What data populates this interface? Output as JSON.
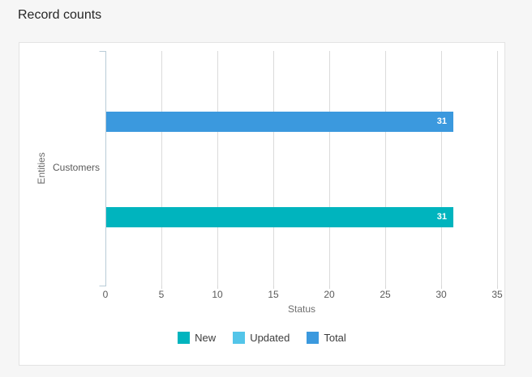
{
  "page": {
    "title": "Record counts"
  },
  "colors": {
    "page_bg": "#F6F6F6",
    "panel_bg": "#FFFFFF",
    "panel_border": "#E3E3E3",
    "axis_line": "#B9CCD7",
    "gridline": "#DBDBDB",
    "bar_value_text": "#FFFFFF",
    "series_new": "#00B4BE",
    "series_updated": "#53C5E9",
    "series_total": "#3B99DE"
  },
  "chart_data": {
    "type": "bar",
    "orientation": "horizontal",
    "title": "Record counts",
    "categories": [
      "Customers"
    ],
    "series": [
      {
        "name": "New",
        "values": [
          31
        ],
        "color": "#00B4BE"
      },
      {
        "name": "Updated",
        "values": [
          0
        ],
        "color": "#53C5E9"
      },
      {
        "name": "Total",
        "values": [
          31
        ],
        "color": "#3B99DE"
      }
    ],
    "xlabel": "Status",
    "ylabel": "Entities",
    "xlim": [
      0,
      35
    ],
    "xticks": [
      0,
      5,
      10,
      15,
      20,
      25,
      30,
      35
    ],
    "grid": "vertical",
    "legend_position": "bottom",
    "bar_value_labels": [
      31,
      31
    ]
  }
}
